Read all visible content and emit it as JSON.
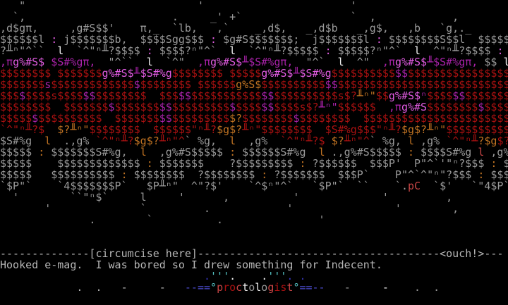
{
  "terminal": {
    "columns": 80,
    "rows": 27,
    "background": "#000000",
    "palette": {
      "g": "#9a9a9a",
      "t": "#b6b6b6",
      "w": "#f2f2f2",
      "m": "#aa22aa",
      "p": "#e25ce2",
      "r": "#aa1111",
      "b": "#c74545",
      "o": "#bf7222",
      "u": "#4d4dd1",
      "c": "#55c4c4",
      "d": "#3434b4"
    },
    "footer": {
      "tear_line_label": "[circumcise here]",
      "tear_line_exclaim": "<ouch!>",
      "message": "Hooked e-mag.  I was bored so I drew something for Indecent.",
      "logo_text": "proctologist",
      "artist_signature": "pC"
    },
    "art_lines": [
      [
        [
          "g",
          "   \"                           '                       '                        "
        ]
      ],
      [
        [
          "g",
          "  `,                       .     _' +`                 `  ,            ,        "
        ]
      ],
      [
        [
          "g",
          ",d$gπ,     ,g#S$$'    π,_  `lb,   ,`    _,d$,   _,d$b   _,g$,   ,b   `g,._      "
        ]
      ],
      [
        [
          "g",
          "$$$$$$l "
        ],
        [
          "p",
          ":"
        ],
        [
          "g",
          " j$$$$$$$b,  $$$$Sgg$$$ "
        ],
        [
          "p",
          ":"
        ],
        [
          "g",
          " $g#S$$$$$$$;  j$$$$$$$l "
        ],
        [
          "p",
          ":"
        ],
        [
          "g",
          " $$$$$$$$S$$l  $$$$$"
        ]
      ],
      [
        [
          "g",
          "?╨ⁿ\"^``  "
        ],
        [
          "w",
          "l"
        ],
        [
          "g",
          "  `^\"ⁿ╨?$$$$ "
        ],
        [
          "p",
          ":"
        ],
        [
          "g",
          " $$$$?ⁿ\"^`  "
        ],
        [
          "w",
          "l"
        ],
        [
          "g",
          "  `^\"ⁿ╨?$$$$$ "
        ],
        [
          "p",
          ":"
        ],
        [
          "g",
          " $$$$$?ⁿ\"^`  "
        ],
        [
          "w",
          "l"
        ],
        [
          "g",
          "  ^\"ⁿ╨?$$$$ "
        ],
        [
          "p",
          ":"
        ],
        [
          "g",
          " "
        ]
      ],
      [
        [
          "m",
          ",π"
        ],
        [
          "p",
          "g%#S$"
        ],
        [
          "m",
          " $S#%gπ,"
        ],
        [
          "g",
          "  \"^``  "
        ],
        [
          "w",
          "l"
        ],
        [
          "g",
          "  `^\"  "
        ],
        [
          "m",
          ",π"
        ],
        [
          "p",
          "g%#S$"
        ],
        [
          "m",
          "╨$S#%gπ,"
        ],
        [
          "g",
          "  \"^`  "
        ],
        [
          "w",
          "l"
        ],
        [
          "g",
          "  ^\"  "
        ],
        [
          "m",
          ",π"
        ],
        [
          "p",
          "g%#S$"
        ],
        [
          "m",
          "╨$S#%gπ,"
        ],
        [
          "g",
          " $$ "
        ],
        [
          "w",
          "l"
        ]
      ],
      [
        [
          "r",
          "$$$$$$$$ $$$$$$$"
        ],
        [
          "p",
          "g%#S$"
        ],
        [
          "m",
          "╨"
        ],
        [
          "p",
          "$S#%g"
        ],
        [
          "r",
          "$$$$$$$$ $$$$$"
        ],
        [
          "p",
          "g%#S$"
        ],
        [
          "m",
          "╨"
        ],
        [
          "p",
          "$S#%g"
        ],
        [
          "r",
          "$$$$$$$$$$"
        ],
        [
          "m",
          "$$"
        ],
        [
          "r",
          "$$$$$$$$$$$$$$$$"
        ]
      ],
      [
        [
          "r",
          "$$$$$$$"
        ],
        [
          "m",
          "s"
        ],
        [
          "r",
          "$$$$$$$$$$$$$"
        ],
        [
          "m",
          "$"
        ],
        [
          "r",
          "$$$$$$$$ $$$$$$"
        ],
        [
          "o",
          "g%S$"
        ],
        [
          "r",
          "$$$$$$$$$$"
        ],
        [
          "m",
          "$$"
        ],
        [
          "r",
          "$$$$$$$$$$$$$$$$$$$$$$$$$$$"
        ]
      ],
      [
        [
          "r",
          "$$$"
        ],
        [
          "m",
          "$"
        ],
        [
          "r",
          "$$$$s$$$$"
        ],
        [
          "m",
          "$$"
        ],
        [
          "r",
          "$$$$$$$$  $$$"
        ],
        [
          "m",
          "$$"
        ],
        [
          "r",
          "$$$$$$$$$$$"
        ],
        [
          "m",
          "$$"
        ],
        [
          "r",
          "$$$$$$$$$$"
        ],
        [
          "r",
          "s$?"
        ],
        [
          "o",
          "╨ⁿ\""
        ],
        [
          "r",
          "$$"
        ],
        [
          "p",
          "g%#S$"
        ],
        [
          "m",
          "ⁿ"
        ],
        [
          "r",
          "$$$$"
        ],
        [
          "m",
          "$$"
        ],
        [
          "r",
          "$$$$$$$"
        ]
      ],
      [
        [
          "r",
          "$$$$$$$$  $$$$$$$"
        ],
        [
          "m",
          "$"
        ],
        [
          "r",
          "$$$$$$$"
        ],
        [
          "m",
          "$$"
        ],
        [
          "r",
          "$$$$$$$$$"
        ],
        [
          "m",
          "$"
        ],
        [
          "r",
          "$$$$"
        ],
        [
          "m",
          "$$"
        ],
        [
          "r",
          "$$$$s$?"
        ],
        [
          "m",
          "╨ⁿ\""
        ],
        [
          "r",
          "$$$$$$  "
        ],
        [
          "m",
          ",π"
        ],
        [
          "p",
          "g%#S"
        ],
        [
          "r",
          "$$$$$$$$"
        ],
        [
          "m",
          "$"
        ],
        [
          "r",
          "$$$$"
        ]
      ],
      [
        [
          "r",
          "$$$$$"
        ],
        [
          "m",
          "$"
        ],
        [
          "r",
          "$$$$$$$$$$  $$$$$$$"
        ],
        [
          "m",
          "$$"
        ],
        [
          "r",
          "$$$$$$$$$"
        ],
        [
          "o",
          "$?"
        ],
        [
          "r",
          "$$$$$$$$"
        ],
        [
          "m",
          "$"
        ],
        [
          "r",
          "$$$$$$$$  $$$$$$$$$$$$$$$$$$$$$$$"
        ]
      ],
      [
        [
          "r",
          "`^\"ⁿ╨?$  "
        ],
        [
          "o",
          "$?╨ⁿ\""
        ],
        [
          "r",
          "$$$$$$$$  $$$$$"
        ],
        [
          "r",
          "$\"ⁿ╨?"
        ],
        [
          "o",
          "$g$?"
        ],
        [
          "r",
          "╨ⁿ\""
        ],
        [
          "r",
          "$$$$$$$$  "
        ],
        [
          "r",
          "$S#%g$$"
        ],
        [
          "r",
          "$\"ⁿ╨?"
        ],
        [
          "o",
          "$g$?"
        ],
        [
          "o",
          "╨ⁿ\""
        ],
        [
          "r",
          "$$$$$$$$$$"
        ]
      ],
      [
        [
          "g",
          "$S#%g  "
        ],
        [
          "o",
          "l"
        ],
        [
          "g",
          "  .,g% "
        ],
        [
          "r",
          "`^\"ⁿ╨?"
        ],
        [
          "o",
          "$g$?"
        ],
        [
          "r",
          "╨ⁿ\"^"
        ],
        [
          "g",
          "` %g,  "
        ],
        [
          "o",
          "l"
        ],
        [
          "g",
          "  ,g%  "
        ],
        [
          "r",
          "`^\"ⁿ╨?$ "
        ],
        [
          "o",
          "$?"
        ],
        [
          "r",
          "╨ⁿ\"^"
        ],
        [
          "g",
          "` %g, "
        ],
        [
          "o",
          "l"
        ],
        [
          "g",
          " ,g% "
        ],
        [
          "r",
          "`^\"ⁿ╨"
        ],
        [
          "o",
          "?$g"
        ],
        [
          "r",
          "$?"
        ]
      ],
      [
        [
          "g",
          "$$$$$ "
        ],
        [
          "o",
          ":"
        ],
        [
          "g",
          " $$$$$$$S#%g,  "
        ],
        [
          "o",
          "l"
        ],
        [
          "g",
          "  ,g%#S$$$$$ "
        ],
        [
          "o",
          ":"
        ],
        [
          "g",
          " $$$$$$S#%g  "
        ],
        [
          "o",
          "l"
        ],
        [
          "g",
          " .,g%#S$$$$$ "
        ],
        [
          "o",
          ":"
        ],
        [
          "g",
          " $$$$S#%g "
        ],
        [
          "b",
          "l"
        ],
        [
          "g",
          " ,g%"
        ]
      ],
      [
        [
          "g",
          "$$$$$    $$$$$$$$$$$$$ "
        ],
        [
          "o",
          ":"
        ],
        [
          "g",
          " $$$$$$$    ?$$$$$$$$$ "
        ],
        [
          "o",
          ":"
        ],
        [
          "g",
          " ?$$$$$$  $$$P'  P\"^`'\"ⁿ?$$$ "
        ],
        [
          "o",
          ":"
        ],
        [
          "g",
          " $"
        ]
      ],
      [
        [
          "g",
          "$$$$$   $$$$$$$$$$ "
        ],
        [
          "o",
          ":"
        ],
        [
          "g",
          " $$$$$$$$  ?$$$$$$$$ "
        ],
        [
          "o",
          ":"
        ],
        [
          "g",
          " ?$$$$$$$  $$$P`    P\"^`^\"ⁿ\"?$$$ "
        ],
        [
          "o",
          ":"
        ],
        [
          "g",
          " $$$"
        ]
      ],
      [
        [
          "g",
          "`$P\"`    `4$$$$$$$P`   $P╨ⁿ\"  ^\"?$'    `^$ⁿ\"^`   `$P\"`  ``    `."
        ],
        [
          "b",
          "pC"
        ],
        [
          "g",
          "  `$'   `\"4$P`"
        ]
      ],
      [
        [
          "g",
          "  '        ``\"ⁿ$`     l     '      ,          '             '         ,         "
        ]
      ],
      [
        [
          "g",
          "       '              `         .            '                '        ,        "
        ]
      ],
      [
        [
          "g",
          "              .        `          .               '                             "
        ]
      ],
      [
        [
          "g",
          "                                                                                "
        ]
      ],
      [
        [
          "g",
          "                                                                                "
        ]
      ],
      [
        [
          "t",
          "--------------[circumcise here]--------------------------------------<ouch!>--- "
        ]
      ],
      [
        [
          "t",
          "Hooked e-mag.  I was bored so I drew something for Indecent.                    "
        ]
      ],
      [
        [
          "t",
          "                                "
        ],
        [
          "d",
          "."
        ],
        [
          "c",
          "'''"
        ],
        [
          "w",
          "."
        ],
        [
          "t",
          "    "
        ],
        [
          "w",
          "."
        ],
        [
          "c",
          "'''"
        ],
        [
          "d",
          "."
        ],
        [
          "t",
          " "
        ],
        [
          "d",
          "."
        ],
        [
          "t",
          "                                "
        ]
      ],
      [
        [
          "t",
          "            ."
        ],
        [
          "t",
          "  ."
        ],
        [
          "t",
          "   -"
        ],
        [
          "t",
          "     -"
        ],
        [
          "t",
          "   "
        ],
        [
          "u",
          "--=="
        ],
        [
          "c",
          "°"
        ],
        [
          "b",
          "p"
        ],
        [
          "r",
          "ro"
        ],
        [
          "b",
          "c"
        ],
        [
          "w",
          "t"
        ],
        [
          "g",
          "o"
        ],
        [
          "w",
          "l"
        ],
        [
          "g",
          "o"
        ],
        [
          "b",
          "g"
        ],
        [
          "r",
          "is"
        ],
        [
          "b",
          "t"
        ],
        [
          "c",
          "°"
        ],
        [
          "u",
          "==--"
        ],
        [
          "t",
          "   "
        ],
        [
          "g",
          "-"
        ],
        [
          "t",
          "     "
        ],
        [
          "w",
          "-"
        ],
        [
          "t",
          "    "
        ],
        [
          "g",
          "."
        ],
        [
          "t",
          "  "
        ],
        [
          "g",
          "."
        ],
        [
          "t",
          "           "
        ]
      ],
      [
        [
          "g",
          "                                                                                "
        ]
      ]
    ]
  }
}
